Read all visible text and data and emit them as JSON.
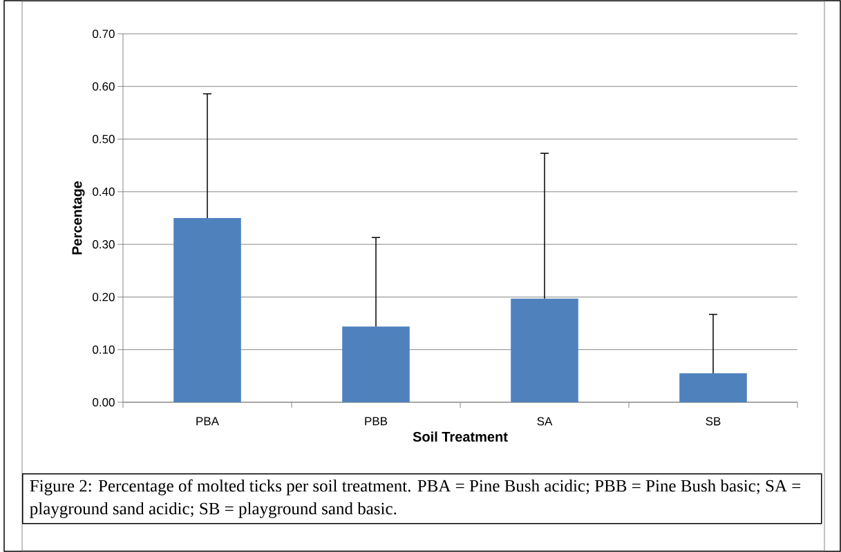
{
  "chart_data": {
    "type": "bar",
    "xlabel": "Soil Treatment",
    "ylabel": "Percentage",
    "categories": [
      "PBA",
      "PBB",
      "SA",
      "SB"
    ],
    "values": [
      0.35,
      0.144,
      0.197,
      0.055
    ],
    "errors": [
      [
        0.35,
        0.586
      ],
      [
        0.144,
        0.313
      ],
      [
        0.197,
        0.473
      ],
      [
        0.055,
        0.167
      ]
    ],
    "color": "#4f81bd",
    "grid": "y",
    "ylim": [
      0,
      0.7
    ],
    "yticks": [
      {
        "value": 0,
        "label": "0.00"
      },
      {
        "value": 0.1,
        "label": "0.10"
      },
      {
        "value": 0.2,
        "label": "0.20"
      },
      {
        "value": 0.3,
        "label": "0.30"
      },
      {
        "value": 0.4,
        "label": "0.40"
      },
      {
        "value": 0.5,
        "label": "0.50"
      },
      {
        "value": 0.6,
        "label": "0.60"
      },
      {
        "value": 0.7,
        "label": "0.70"
      }
    ],
    "annotations": [
      "Figure 2: Percentage of molted ticks per soil treatment. PBA = Pine Bush acidic; PBB = Pine Bush basic; SA = playground sand acidic; SB = playground sand basic."
    ]
  }
}
